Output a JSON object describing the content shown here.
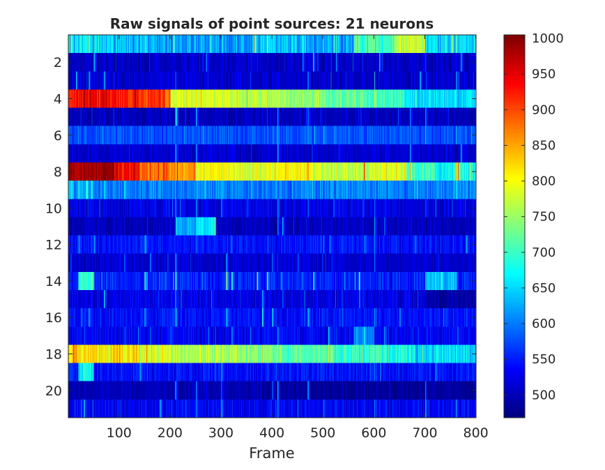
{
  "chart_data": {
    "type": "heatmap",
    "title": "Raw signals of point sources: 21 neurons",
    "xlabel": "Frame",
    "ylabel": "",
    "xlim": [
      0.5,
      800.5
    ],
    "ylim": [
      0.5,
      21.5
    ],
    "x_ticks": [
      100,
      200,
      300,
      400,
      500,
      600,
      700,
      800
    ],
    "y_ticks": [
      2,
      4,
      6,
      8,
      10,
      12,
      14,
      16,
      18,
      20
    ],
    "y_direction": "reversed",
    "n_rows": 21,
    "n_frames": 800,
    "colormap": "jet",
    "colorbar": {
      "limits": [
        468,
        1005
      ],
      "ticks": [
        500,
        550,
        600,
        650,
        700,
        750,
        800,
        850,
        900,
        950,
        1000
      ]
    },
    "rows": [
      {
        "neuron": 1,
        "base": 620,
        "noise": 50,
        "segments": [
          [
            0,
            80,
            650
          ],
          [
            80,
            200,
            630
          ],
          [
            200,
            360,
            610
          ],
          [
            360,
            470,
            640
          ],
          [
            470,
            560,
            620
          ],
          [
            560,
            640,
            700
          ],
          [
            640,
            700,
            780
          ],
          [
            700,
            800,
            650
          ]
        ],
        "events": [
          [
            40,
            760
          ],
          [
            150,
            700
          ],
          [
            205,
            900
          ],
          [
            365,
            880
          ],
          [
            390,
            720
          ],
          [
            520,
            780
          ],
          [
            525,
            720
          ],
          [
            680,
            760
          ],
          [
            760,
            700
          ]
        ]
      },
      {
        "neuron": 2,
        "base": 505,
        "noise": 30,
        "segments": [],
        "events": [
          [
            50,
            650
          ],
          [
            270,
            620
          ],
          [
            460,
            640
          ],
          [
            480,
            700
          ],
          [
            525,
            640
          ],
          [
            610,
            620
          ],
          [
            700,
            600
          ],
          [
            770,
            640
          ]
        ]
      },
      {
        "neuron": 3,
        "base": 510,
        "noise": 30,
        "segments": [],
        "events": [
          [
            15,
            680
          ],
          [
            40,
            640
          ],
          [
            70,
            620
          ],
          [
            210,
            600
          ],
          [
            470,
            600
          ],
          [
            600,
            650
          ],
          [
            690,
            640
          ],
          [
            760,
            640
          ]
        ]
      },
      {
        "neuron": 4,
        "base": 660,
        "noise": 35,
        "segments": [
          [
            0,
            100,
            935
          ],
          [
            100,
            190,
            910
          ],
          [
            190,
            200,
            870
          ],
          [
            200,
            330,
            780
          ],
          [
            330,
            430,
            760
          ],
          [
            430,
            500,
            740
          ],
          [
            500,
            580,
            720
          ],
          [
            580,
            660,
            700
          ],
          [
            660,
            800,
            650
          ]
        ],
        "events": [
          [
            130,
            980
          ],
          [
            230,
            820
          ],
          [
            590,
            760
          ],
          [
            600,
            790
          ],
          [
            680,
            720
          ]
        ]
      },
      {
        "neuron": 5,
        "base": 500,
        "noise": 25,
        "segments": [],
        "events": [
          [
            210,
            660
          ],
          [
            212,
            680
          ],
          [
            250,
            640
          ],
          [
            410,
            640
          ],
          [
            470,
            600
          ],
          [
            670,
            640
          ],
          [
            700,
            620
          ]
        ]
      },
      {
        "neuron": 6,
        "base": 575,
        "noise": 30,
        "segments": [],
        "events": [
          [
            410,
            660
          ],
          [
            470,
            640
          ],
          [
            500,
            620
          ],
          [
            700,
            640
          ],
          [
            760,
            640
          ]
        ]
      },
      {
        "neuron": 7,
        "base": 510,
        "noise": 25,
        "segments": [],
        "events": [
          [
            210,
            650
          ],
          [
            250,
            640
          ],
          [
            410,
            640
          ],
          [
            670,
            640
          ],
          [
            770,
            640
          ]
        ]
      },
      {
        "neuron": 8,
        "base": 800,
        "noise": 40,
        "segments": [
          [
            0,
            90,
            990
          ],
          [
            90,
            140,
            940
          ],
          [
            140,
            200,
            880
          ],
          [
            200,
            250,
            860
          ],
          [
            250,
            330,
            800
          ],
          [
            330,
            400,
            790
          ],
          [
            400,
            470,
            800
          ],
          [
            470,
            560,
            770
          ],
          [
            560,
            590,
            760
          ],
          [
            590,
            660,
            780
          ],
          [
            660,
            720,
            700
          ],
          [
            720,
            800,
            680
          ]
        ],
        "events": [
          [
            30,
            1000
          ],
          [
            470,
            860
          ],
          [
            580,
            900
          ],
          [
            660,
            860
          ],
          [
            670,
            860
          ],
          [
            760,
            900
          ],
          [
            765,
            920
          ],
          [
            775,
            640
          ]
        ]
      },
      {
        "neuron": 9,
        "base": 600,
        "noise": 35,
        "segments": [
          [
            0,
            10,
            660
          ],
          [
            10,
            40,
            620
          ]
        ],
        "events": [
          [
            20,
            700
          ],
          [
            35,
            720
          ],
          [
            45,
            740
          ],
          [
            70,
            660
          ],
          [
            110,
            680
          ],
          [
            250,
            640
          ],
          [
            760,
            660
          ]
        ]
      },
      {
        "neuron": 10,
        "base": 520,
        "noise": 30,
        "segments": [],
        "events": [
          [
            210,
            620
          ],
          [
            250,
            620
          ],
          [
            300,
            620
          ],
          [
            410,
            640
          ],
          [
            470,
            600
          ],
          [
            520,
            600
          ],
          [
            600,
            600
          ],
          [
            700,
            600
          ]
        ]
      },
      {
        "neuron": 11,
        "base": 500,
        "noise": 25,
        "segments": [
          [
            210,
            250,
            620
          ],
          [
            250,
            290,
            660
          ]
        ],
        "events": [
          [
            220,
            640
          ],
          [
            280,
            660
          ],
          [
            410,
            620
          ],
          [
            420,
            640
          ],
          [
            600,
            640
          ],
          [
            620,
            640
          ]
        ]
      },
      {
        "neuron": 12,
        "base": 540,
        "noise": 30,
        "segments": [],
        "events": [
          [
            20,
            600
          ],
          [
            50,
            620
          ],
          [
            150,
            620
          ],
          [
            250,
            620
          ],
          [
            320,
            600
          ],
          [
            500,
            600
          ],
          [
            580,
            600
          ],
          [
            600,
            620
          ],
          [
            680,
            620
          ],
          [
            780,
            640
          ]
        ]
      },
      {
        "neuron": 13,
        "base": 510,
        "noise": 25,
        "segments": [],
        "events": [
          [
            110,
            620
          ],
          [
            160,
            620
          ],
          [
            210,
            620
          ],
          [
            310,
            620
          ],
          [
            400,
            620
          ],
          [
            450,
            600
          ],
          [
            600,
            620
          ]
        ]
      },
      {
        "neuron": 14,
        "base": 550,
        "noise": 35,
        "segments": [
          [
            20,
            50,
            700
          ],
          [
            700,
            760,
            640
          ]
        ],
        "events": [
          [
            25,
            780
          ],
          [
            45,
            740
          ],
          [
            150,
            720
          ],
          [
            210,
            720
          ],
          [
            310,
            800
          ],
          [
            320,
            760
          ],
          [
            370,
            720
          ],
          [
            390,
            700
          ],
          [
            480,
            680
          ],
          [
            570,
            700
          ],
          [
            730,
            720
          ],
          [
            760,
            680
          ]
        ]
      },
      {
        "neuron": 15,
        "base": 520,
        "noise": 30,
        "segments": [
          [
            700,
            800,
            490
          ]
        ],
        "events": [
          [
            70,
            620
          ],
          [
            210,
            620
          ],
          [
            280,
            620
          ],
          [
            380,
            620
          ],
          [
            420,
            600
          ],
          [
            570,
            600
          ]
        ]
      },
      {
        "neuron": 16,
        "base": 540,
        "noise": 30,
        "segments": [],
        "events": [
          [
            25,
            640
          ],
          [
            40,
            660
          ],
          [
            150,
            640
          ],
          [
            210,
            660
          ],
          [
            310,
            640
          ],
          [
            380,
            700
          ],
          [
            400,
            640
          ],
          [
            470,
            640
          ],
          [
            600,
            640
          ],
          [
            650,
            640
          ]
        ]
      },
      {
        "neuron": 17,
        "base": 530,
        "noise": 30,
        "segments": [
          [
            560,
            600,
            600
          ]
        ],
        "events": [
          [
            110,
            620
          ],
          [
            200,
            620
          ],
          [
            320,
            620
          ],
          [
            410,
            620
          ],
          [
            510,
            680
          ],
          [
            580,
            680
          ],
          [
            620,
            640
          ]
        ]
      },
      {
        "neuron": 18,
        "base": 740,
        "noise": 45,
        "segments": [
          [
            0,
            20,
            830
          ],
          [
            20,
            130,
            810
          ],
          [
            130,
            200,
            790
          ],
          [
            200,
            330,
            760
          ],
          [
            330,
            420,
            740
          ],
          [
            420,
            520,
            720
          ],
          [
            520,
            620,
            690
          ],
          [
            620,
            680,
            680
          ],
          [
            680,
            800,
            650
          ]
        ],
        "events": [
          [
            10,
            900
          ],
          [
            100,
            850
          ],
          [
            540,
            760
          ],
          [
            720,
            620
          ]
        ]
      },
      {
        "neuron": 19,
        "base": 540,
        "noise": 30,
        "segments": [
          [
            20,
            50,
            660
          ]
        ],
        "events": [
          [
            30,
            700
          ],
          [
            140,
            640
          ],
          [
            300,
            620
          ],
          [
            600,
            620
          ],
          [
            720,
            640
          ]
        ]
      },
      {
        "neuron": 20,
        "base": 495,
        "noise": 20,
        "segments": [
          [
            380,
            800,
            480
          ]
        ],
        "events": [
          [
            210,
            640
          ],
          [
            250,
            640
          ],
          [
            300,
            620
          ],
          [
            400,
            620
          ],
          [
            410,
            660
          ],
          [
            470,
            640
          ],
          [
            700,
            620
          ]
        ]
      },
      {
        "neuron": 21,
        "base": 530,
        "noise": 30,
        "segments": [],
        "events": [
          [
            25,
            640
          ],
          [
            30,
            660
          ],
          [
            180,
            640
          ],
          [
            250,
            640
          ],
          [
            300,
            620
          ],
          [
            410,
            640
          ],
          [
            500,
            620
          ],
          [
            600,
            640
          ],
          [
            700,
            640
          ],
          [
            760,
            640
          ]
        ]
      }
    ]
  }
}
